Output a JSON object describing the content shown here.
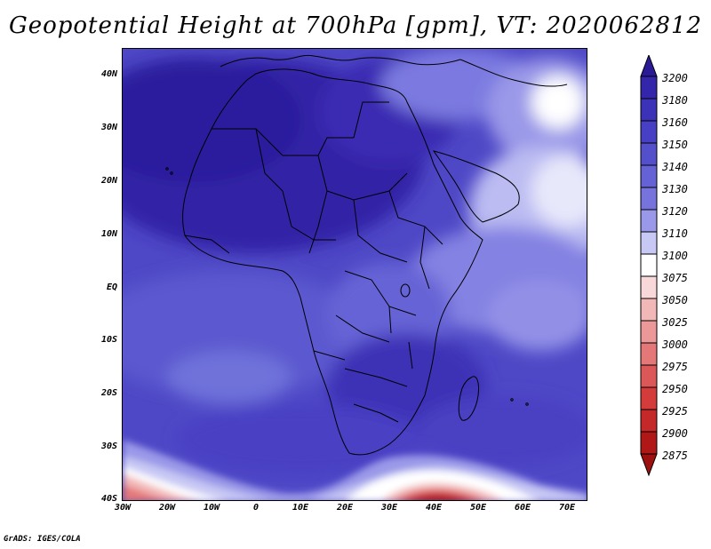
{
  "title": "Geopotential Height at 700hPa [gpm], VT: 2020062812",
  "credit": "GrADS: IGES/COLA",
  "map": {
    "lat_labels": [
      "40N",
      "30N",
      "20N",
      "10N",
      "EQ",
      "10S",
      "20S",
      "30S",
      "40S"
    ],
    "lon_labels": [
      "30W",
      "20W",
      "10W",
      "0",
      "10E",
      "20E",
      "30E",
      "40E",
      "50E",
      "60E",
      "70E"
    ]
  },
  "colorbar": {
    "levels": [
      "3200",
      "3180",
      "3160",
      "3150",
      "3140",
      "3130",
      "3120",
      "3110",
      "3100",
      "3075",
      "3050",
      "3025",
      "3000",
      "2975",
      "2950",
      "2925",
      "2900",
      "2875"
    ],
    "colors": [
      "#2a1a96",
      "#3426aa",
      "#3c32b8",
      "#4840c4",
      "#5450cc",
      "#6462d4",
      "#7674dc",
      "#9a98e8",
      "#c8c8f4",
      "#ffffff",
      "#f8d8d8",
      "#f2b8b8",
      "#ec9898",
      "#e47878",
      "#dc5858",
      "#d43c3c",
      "#c42828",
      "#b01818",
      "#9c1010"
    ]
  }
}
